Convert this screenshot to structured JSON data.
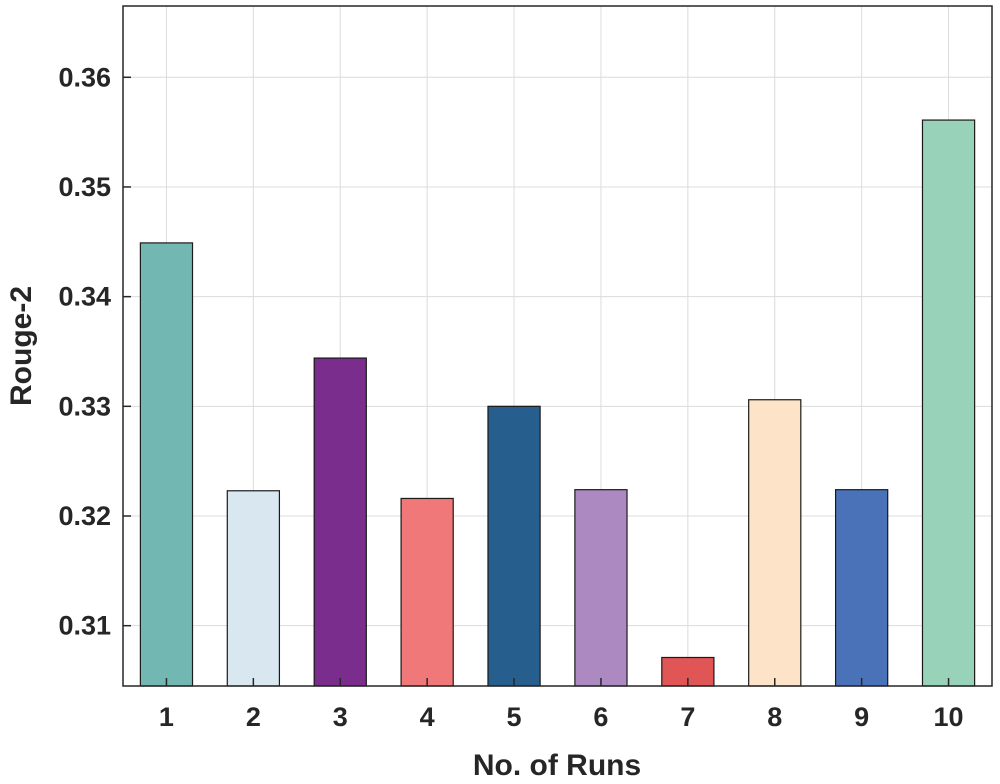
{
  "chart_data": {
    "type": "bar",
    "title": "",
    "xlabel": "No. of Runs",
    "ylabel": "Rouge-2",
    "categories": [
      "1",
      "2",
      "3",
      "4",
      "5",
      "6",
      "7",
      "8",
      "9",
      "10"
    ],
    "values": [
      0.3449,
      0.3223,
      0.3344,
      0.3216,
      0.33,
      0.3224,
      0.3071,
      0.3306,
      0.3224,
      0.3561
    ],
    "colors": [
      "#72b7b2",
      "#d9e7f1",
      "#7b2d8e",
      "#f07878",
      "#265e8e",
      "#ac89c1",
      "#e05656",
      "#fde3c8",
      "#4a72b8",
      "#98d3b9"
    ],
    "ylim": [
      0.3045,
      0.3665
    ],
    "yticks": [
      0.31,
      0.32,
      0.33,
      0.34,
      0.35,
      0.36
    ],
    "ytick_labels": [
      "0.31",
      "0.32",
      "0.33",
      "0.34",
      "0.35",
      "0.36"
    ],
    "grid": true,
    "legend": "none"
  }
}
